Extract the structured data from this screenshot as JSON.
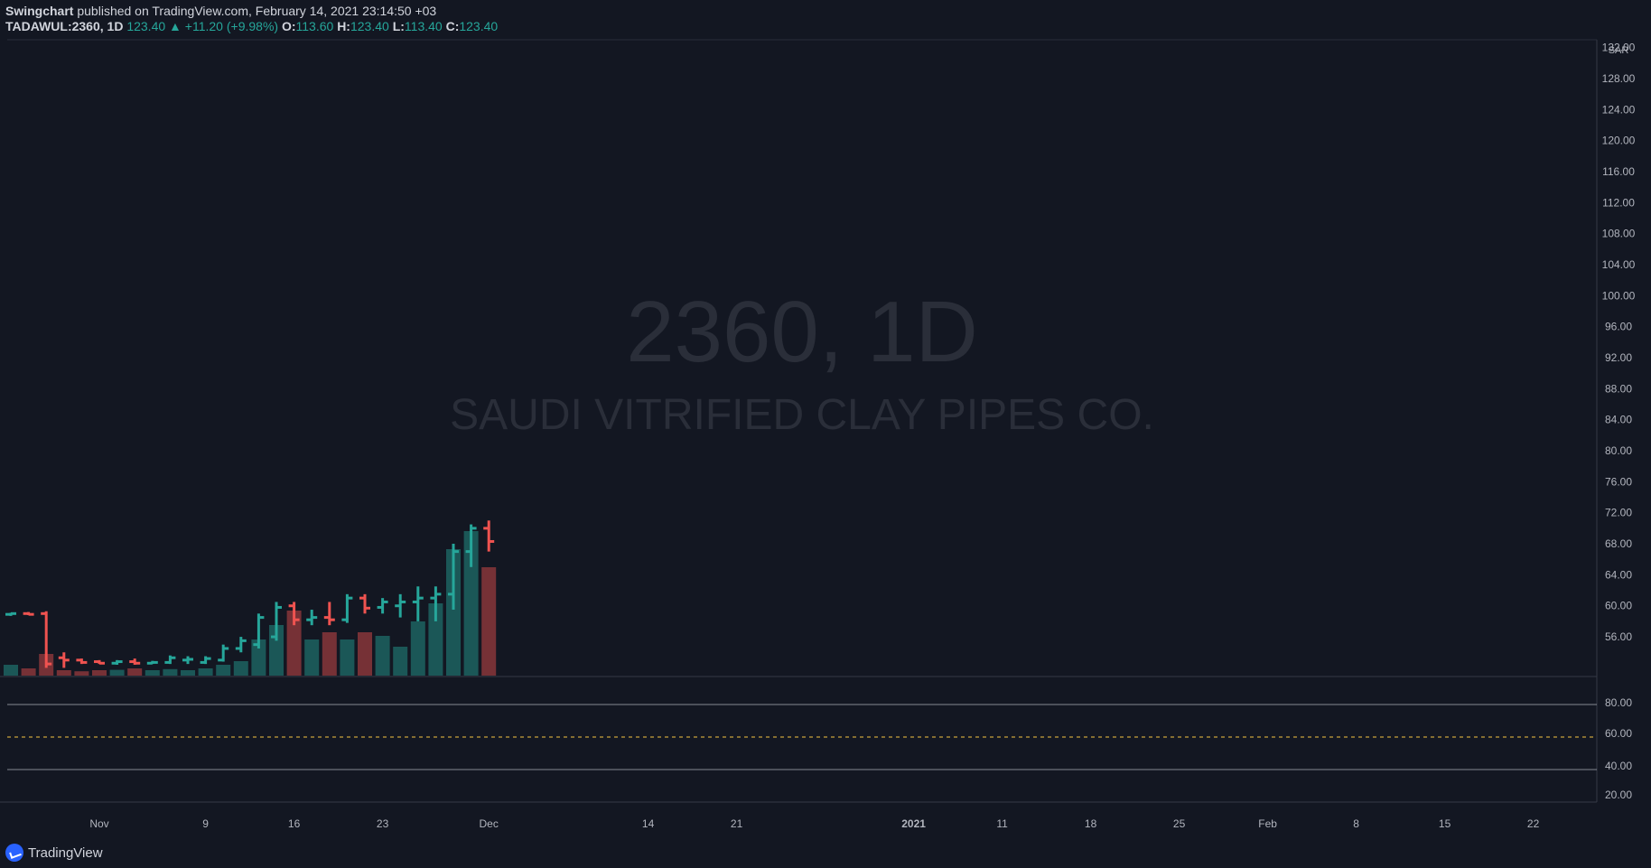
{
  "header": {
    "author": "Swingchart",
    "published": "published on TradingView.com, February 14, 2021 23:14:50 +03",
    "symbol": "TADAWUL:2360, 1D",
    "last": "123.40",
    "change": "▲ +11.20 (+9.98%)",
    "o_label": "O:",
    "o_val": "113.60",
    "h_label": "H:",
    "h_val": "123.40",
    "l_label": "L:",
    "l_val": "113.40",
    "c_label": "C:",
    "c_val": "123.40"
  },
  "watermark": {
    "symbol": "2360, 1D",
    "name": "SAUDI VITRIFIED CLAY PIPES CO."
  },
  "brand": "TradingView",
  "currency": "SAR",
  "colors": {
    "bg": "#131722",
    "up": "#26a69a",
    "down": "#ef5350",
    "sma20": "#7e57c2",
    "sma50": "#1e88e5",
    "green": "#00e600",
    "red": "#ff0000"
  },
  "chart_data": {
    "type": "ohlc",
    "title": "TADAWUL:2360, 1D — Saudi Vitrified Clay Pipes Co.",
    "ylim": [
      51,
      133
    ],
    "y_ticks": [
      56,
      60,
      64,
      68,
      72,
      76,
      80,
      84,
      88,
      92,
      96,
      100,
      104,
      108,
      112,
      116,
      120,
      124,
      128,
      132
    ],
    "x_ticks": [
      {
        "i": 5,
        "label": "Nov"
      },
      {
        "i": 11,
        "label": "9"
      },
      {
        "i": 16,
        "label": "16"
      },
      {
        "i": 21,
        "label": "23"
      },
      {
        "i": 27,
        "label": "Dec"
      },
      {
        "i": 36,
        "label": "14"
      },
      {
        "i": 41,
        "label": "21"
      },
      {
        "i": 51,
        "label": "2021"
      },
      {
        "i": 56,
        "label": "11"
      },
      {
        "i": 61,
        "label": "18"
      },
      {
        "i": 66,
        "label": "25"
      },
      {
        "i": 71,
        "label": "Feb"
      },
      {
        "i": 76,
        "label": "8"
      },
      {
        "i": 81,
        "label": "15"
      },
      {
        "i": 86,
        "label": "22"
      }
    ],
    "bars": [
      {
        "o": 58.9,
        "h": 59.1,
        "l": 58.7,
        "c": 59.0,
        "v": 3
      },
      {
        "o": 59.0,
        "h": 59.2,
        "l": 58.8,
        "c": 58.9,
        "v": 2
      },
      {
        "o": 59.0,
        "h": 59.3,
        "l": 52,
        "c": 52.5,
        "v": 6
      },
      {
        "o": 53.3,
        "h": 54,
        "l": 52,
        "c": 53,
        "v": 1.5
      },
      {
        "o": 53,
        "h": 53.2,
        "l": 52.5,
        "c": 52.7,
        "v": 1.2
      },
      {
        "o": 52.8,
        "h": 53,
        "l": 52.5,
        "c": 52.6,
        "v": 1.5
      },
      {
        "o": 52.6,
        "h": 53,
        "l": 52.4,
        "c": 52.8,
        "v": 1.6
      },
      {
        "o": 52.8,
        "h": 53.2,
        "l": 52.4,
        "c": 52.6,
        "v": 2
      },
      {
        "o": 52.6,
        "h": 52.9,
        "l": 52.5,
        "c": 52.7,
        "v": 1.5
      },
      {
        "o": 52.7,
        "h": 53.6,
        "l": 52.5,
        "c": 53.3,
        "v": 1.8
      },
      {
        "o": 53,
        "h": 53.5,
        "l": 52.5,
        "c": 53.1,
        "v": 1.5
      },
      {
        "o": 52.7,
        "h": 53.5,
        "l": 52.5,
        "c": 53.2,
        "v": 2
      },
      {
        "o": 53,
        "h": 55,
        "l": 52.8,
        "c": 54.5,
        "v": 3
      },
      {
        "o": 54.5,
        "h": 56,
        "l": 54,
        "c": 55.5,
        "v": 4
      },
      {
        "o": 55,
        "h": 59,
        "l": 54.5,
        "c": 58.5,
        "v": 10
      },
      {
        "o": 56,
        "h": 60.5,
        "l": 55.5,
        "c": 59.8,
        "v": 14
      },
      {
        "o": 60,
        "h": 60.5,
        "l": 57.5,
        "c": 58.2,
        "v": 18
      },
      {
        "o": 58.2,
        "h": 59.5,
        "l": 57.5,
        "c": 58.5,
        "v": 10
      },
      {
        "o": 58.5,
        "h": 60.5,
        "l": 57.5,
        "c": 58.2,
        "v": 12
      },
      {
        "o": 58.2,
        "h": 61.5,
        "l": 57.8,
        "c": 61,
        "v": 10
      },
      {
        "o": 61,
        "h": 61.5,
        "l": 59,
        "c": 59.7,
        "v": 12
      },
      {
        "o": 59.8,
        "h": 61,
        "l": 59,
        "c": 60.5,
        "v": 11
      },
      {
        "o": 60,
        "h": 61.5,
        "l": 58.5,
        "c": 60.5,
        "v": 8
      },
      {
        "o": 60.5,
        "h": 62.5,
        "l": 58,
        "c": 61,
        "v": 15
      },
      {
        "o": 61,
        "h": 62.5,
        "l": 58,
        "c": 61.5,
        "v": 20
      },
      {
        "o": 61.5,
        "h": 68,
        "l": 59.5,
        "c": 67,
        "v": 35
      },
      {
        "o": 67,
        "h": 70.5,
        "l": 65,
        "c": 70,
        "v": 40
      },
      {
        "o": 70,
        "h": 71,
        "l": 67,
        "c": 68.3,
        "v": 30
      }
    ]
  }
}
